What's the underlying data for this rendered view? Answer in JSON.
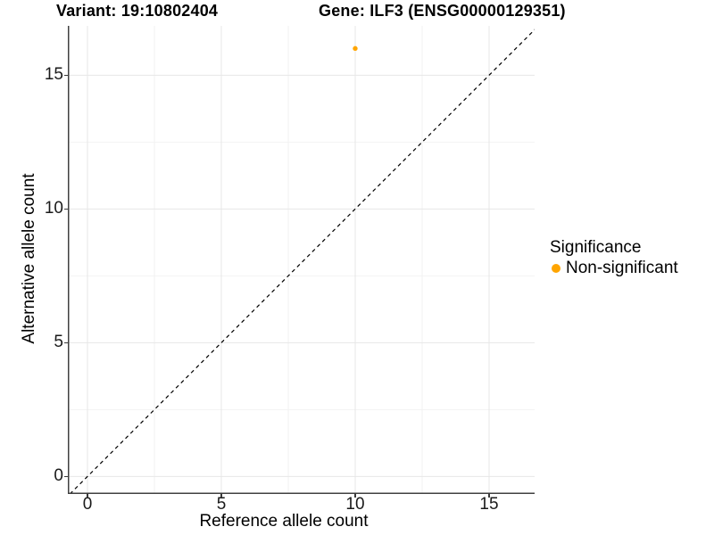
{
  "chart_data": {
    "type": "scatter",
    "titles": {
      "variant": "Variant: 19:10802404",
      "gene": "Gene: ILF3 (ENSG00000129351)"
    },
    "xlabel": "Reference allele count",
    "ylabel": "Alternative allele count",
    "x_ticks": [
      0,
      5,
      10,
      15
    ],
    "y_ticks": [
      0,
      5,
      10,
      15
    ],
    "x_minor_ticks": [
      2.5,
      7.5,
      12.5
    ],
    "y_minor_ticks": [
      2.5,
      7.5,
      12.5
    ],
    "xlim": [
      -0.733,
      16.7
    ],
    "ylim": [
      -0.655,
      16.845
    ],
    "grid": true,
    "identity_line": {
      "equation": "y = x",
      "style": "dashed",
      "color": "#000000"
    },
    "series": [
      {
        "name": "Non-significant",
        "color": "#FFA500",
        "points": [
          {
            "x": 10,
            "y": 16
          }
        ]
      }
    ],
    "legend": {
      "title": "Significance",
      "position": "right",
      "items": [
        {
          "label": "Non-significant",
          "color": "#FFA500"
        }
      ]
    }
  },
  "style_colors": {
    "point": "#FFA500",
    "grid_major": "#e7e7e7",
    "grid_minor": "#f2f2f2",
    "axis_line": "#404040",
    "tick_mark": "#383838",
    "identity_line": "#000000"
  }
}
